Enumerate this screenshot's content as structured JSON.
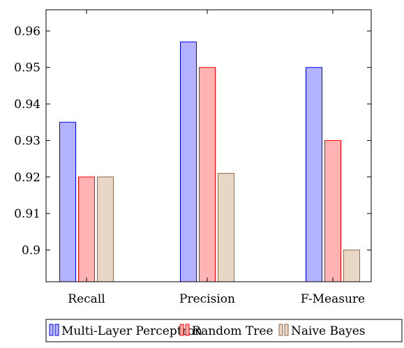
{
  "chart_data": {
    "type": "bar",
    "categories": [
      "Recall",
      "Precision",
      "F-Measure"
    ],
    "series": [
      {
        "name": "Multi-Layer Perceptron",
        "values": [
          0.935,
          0.957,
          0.95
        ],
        "fill": "#b3b3ff",
        "stroke": "#0000ff"
      },
      {
        "name": "Random Tree",
        "values": [
          0.92,
          0.95,
          0.93
        ],
        "fill": "#ffb3b3",
        "stroke": "#ff0000"
      },
      {
        "name": "Naive Bayes",
        "values": [
          0.92,
          0.921,
          0.9
        ],
        "fill": "#e8d7c4",
        "stroke": "#8b6a4a"
      }
    ],
    "yticks": [
      "0.9",
      "0.91",
      "0.92",
      "0.93",
      "0.94",
      "0.95",
      "0.96"
    ],
    "ylim": [
      0.8913,
      0.9658
    ],
    "title": "",
    "xlabel": "",
    "ylabel": "",
    "grid": false,
    "legend_position": "bottom"
  }
}
